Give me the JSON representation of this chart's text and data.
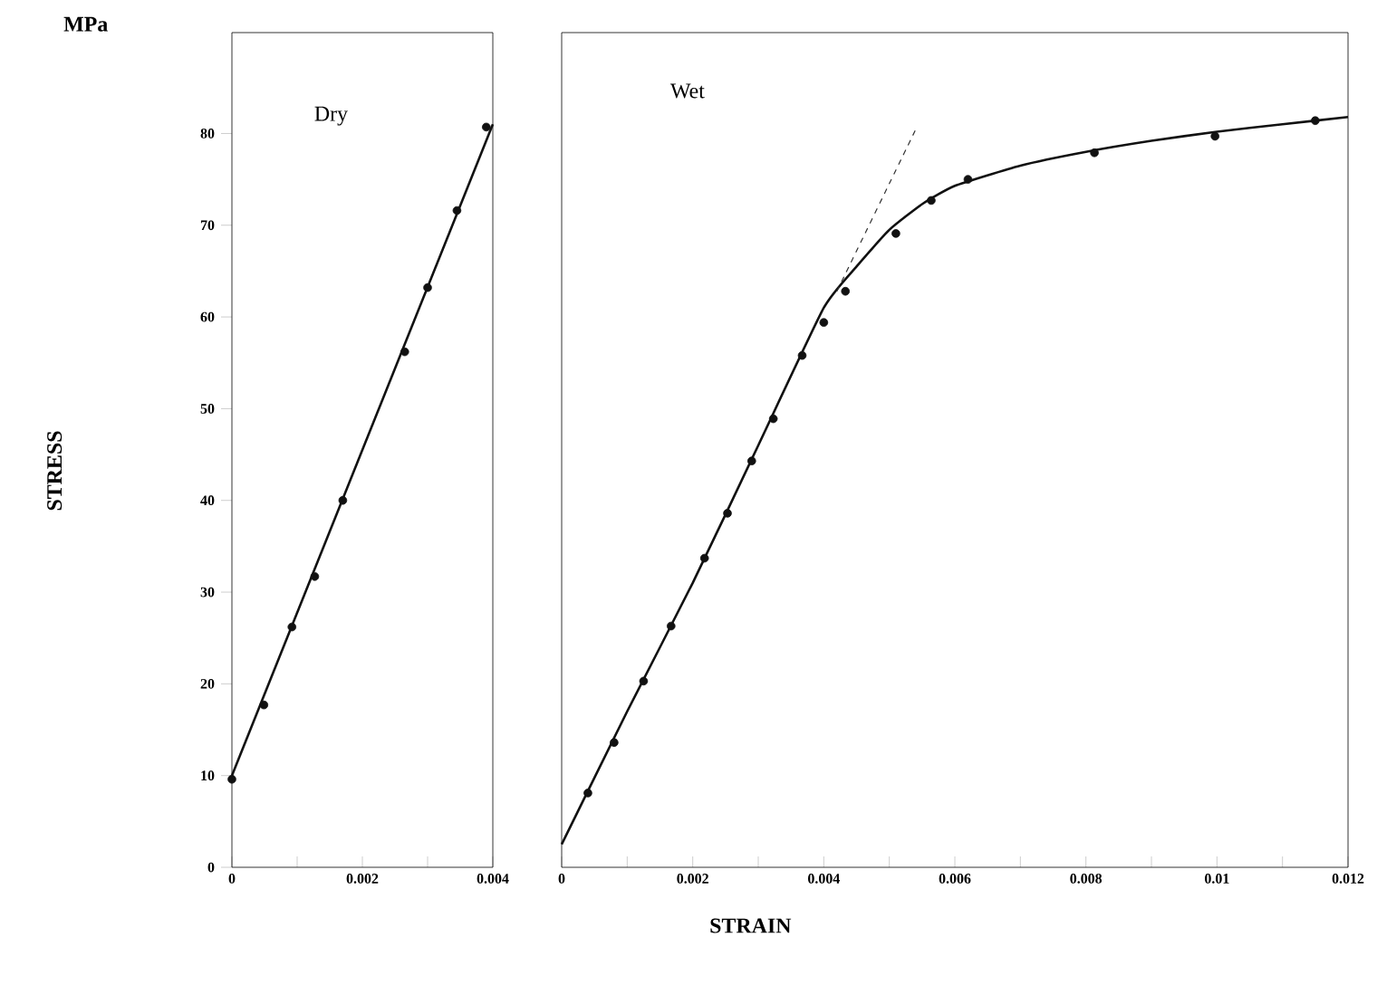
{
  "chart_data": [
    {
      "type": "scatter",
      "title": "Dry",
      "ylabel": "STRESS",
      "annotations": [
        "MPa"
      ],
      "xlim": [
        0,
        0.004
      ],
      "ylim": [
        0,
        91
      ],
      "xticks": [
        0,
        {
          "value": 0.001,
          "label": null
        },
        0.002,
        {
          "value": 0.003,
          "label": null
        },
        0.004
      ],
      "yticks": [
        0,
        10,
        20,
        30,
        40,
        50,
        60,
        70,
        80
      ],
      "grid": false,
      "series": [
        {
          "marker": "circle",
          "color": "#111111",
          "x": [
            0,
            0.00049,
            0.00092,
            0.00127,
            0.0017,
            0.00265,
            0.003,
            0.00345,
            0.0039
          ],
          "values": [
            9.6,
            17.7,
            26.2,
            31.7,
            40,
            56.2,
            63.2,
            71.6,
            80.7
          ]
        },
        {
          "type": "line",
          "marker": "none",
          "color": "#111111",
          "x": [
            0,
            0.004
          ],
          "values": [
            10,
            81
          ]
        }
      ]
    },
    {
      "type": "scatter",
      "title": "Wet",
      "xlabel": "STRAIN",
      "xlim": [
        0,
        0.012
      ],
      "ylim": [
        0,
        91
      ],
      "xticks": [
        0,
        {
          "value": 0.001,
          "label": null
        },
        0.002,
        {
          "value": 0.003,
          "label": null
        },
        0.004,
        {
          "value": 0.005,
          "label": null
        },
        0.006,
        {
          "value": 0.007,
          "label": null
        },
        0.008,
        {
          "value": 0.009,
          "label": null
        },
        0.01,
        {
          "value": 0.011,
          "label": null
        },
        0.012
      ],
      "tick_labels": "x",
      "grid": false,
      "series": [
        {
          "marker": "circle",
          "color": "#111111",
          "x": [
            0.0004,
            0.0008,
            0.00125,
            0.00167,
            0.00218,
            0.00253,
            0.0029,
            0.00323,
            0.00367,
            0.004,
            0.00433,
            0.0051,
            0.00564,
            0.0062,
            0.00813,
            0.00997,
            0.0115
          ],
          "values": [
            8.1,
            13.6,
            20.3,
            26.3,
            33.7,
            38.6,
            44.3,
            48.9,
            55.8,
            59.4,
            62.8,
            69.1,
            72.7,
            75,
            77.9,
            79.7,
            81.4
          ]
        },
        {
          "type": "line",
          "marker": "none",
          "color": "#111111",
          "x": [
            0,
            0.001,
            0.002,
            0.003,
            0.004,
            0.0045,
            0.005,
            0.0055,
            0.006,
            0.007,
            0.008,
            0.009,
            0.01,
            0.011,
            0.012
          ],
          "values": [
            2.5,
            17,
            31,
            46,
            61,
            65.5,
            69.5,
            72.3,
            74.3,
            76.5,
            78,
            79.2,
            80.2,
            81,
            81.8
          ]
        },
        {
          "type": "line",
          "marker": "none",
          "line_style": "dashed",
          "color": "#333333",
          "x": [
            0.0042,
            0.0054
          ],
          "values": [
            62.8,
            80.4
          ]
        }
      ]
    }
  ]
}
